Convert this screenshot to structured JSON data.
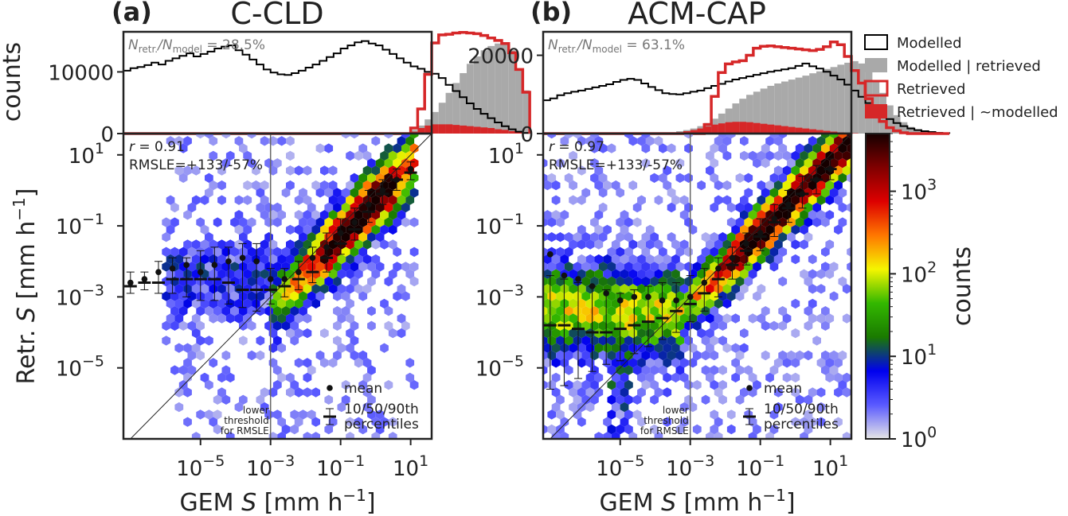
{
  "figure": {
    "colorbar": {
      "label": "counts",
      "ticks": [
        {
          "exp": "0",
          "value": 1
        },
        {
          "exp": "1",
          "value": 10
        },
        {
          "exp": "2",
          "value": 100
        },
        {
          "exp": "3",
          "value": 1000
        }
      ],
      "colormap": [
        "#e6e6e6",
        "#5a5aff",
        "#0000ee",
        "#1a7a00",
        "#33b800",
        "#f5f500",
        "#ff7700",
        "#dd0000",
        "#800000",
        "#150000"
      ],
      "range": [
        1,
        5000
      ]
    },
    "legend": {
      "items": [
        {
          "label": "Modelled",
          "style": "outline",
          "color": "#000000"
        },
        {
          "label": "Modelled | retrieved",
          "style": "fill",
          "color": "#a9a9a9"
        },
        {
          "label": "Retrieved",
          "style": "outline",
          "color": "#d62728"
        },
        {
          "label": "Retrieved | ~modelled",
          "style": "fill",
          "color": "#d62728"
        }
      ]
    },
    "colors": {
      "modelled": "#000000",
      "modelled_retrieved": "#a9a9a9",
      "retrieved": "#d62728",
      "axis": "#222222"
    }
  },
  "chart_data": [
    {
      "panel_label": "(a)",
      "title": "C-CLD",
      "histogram": {
        "type": "bar",
        "ylabel": "counts",
        "yticks": [
          "0",
          "10000"
        ],
        "ylim": [
          0,
          16500
        ],
        "ratio_text_prefix": "N",
        "ratio_sub_num": "retr.",
        "ratio_sep": "/N",
        "ratio_sub_den": "model",
        "ratio_value": " = 28.5%",
        "log10_x_edges_start": -7.2,
        "bin_width_log10": 0.2,
        "series": [
          {
            "name": "Modelled",
            "values": [
              10200,
              10600,
              10800,
              11100,
              11500,
              11200,
              11800,
              12200,
              12600,
              13000,
              12500,
              12900,
              13300,
              13800,
              14100,
              14300,
              13500,
              12800,
              12000,
              11200,
              10400,
              9900,
              9600,
              9500,
              9800,
              10200,
              10700,
              11200,
              11800,
              12400,
              13000,
              13800,
              14300,
              14800,
              15000,
              14600,
              14300,
              13600,
              12900,
              12200,
              11500,
              10900,
              10500,
              10000,
              9700,
              9000,
              7900,
              6900,
              5900,
              4900,
              4000,
              3200,
              2500,
              1800,
              1200,
              700,
              300,
              100
            ]
          },
          {
            "name": "Modelled | retrieved",
            "values": [
              0,
              0,
              0,
              0,
              0,
              0,
              0,
              0,
              0,
              0,
              0,
              0,
              0,
              0,
              0,
              0,
              0,
              0,
              0,
              0,
              0,
              0,
              0,
              0,
              0,
              0,
              0,
              0,
              0,
              0,
              0,
              0,
              0,
              0,
              0,
              0,
              0,
              0,
              0,
              0,
              0,
              600,
              1300,
              2300,
              3500,
              5000,
              6600,
              8200,
              9800,
              11300,
              12500,
              13500,
              14200,
              14600,
              14800,
              13500,
              10500,
              7000
            ]
          },
          {
            "name": "Retrieved",
            "values": [
              0,
              0,
              0,
              0,
              0,
              0,
              0,
              0,
              0,
              0,
              0,
              0,
              0,
              0,
              0,
              0,
              0,
              0,
              0,
              0,
              0,
              0,
              0,
              0,
              0,
              0,
              0,
              0,
              0,
              0,
              0,
              0,
              0,
              0,
              0,
              0,
              0,
              0,
              0,
              0,
              0,
              900,
              4000,
              9600,
              14700,
              16000,
              16100,
              16300,
              16400,
              16300,
              16200,
              15900,
              15500,
              15100,
              14600,
              13100,
              10400,
              6700
            ]
          },
          {
            "name": "Retrieved | ~modelled",
            "values": [
              0,
              0,
              0,
              0,
              0,
              0,
              0,
              0,
              0,
              0,
              0,
              0,
              0,
              0,
              0,
              0,
              0,
              0,
              0,
              0,
              0,
              0,
              0,
              0,
              0,
              0,
              0,
              0,
              0,
              0,
              0,
              0,
              0,
              0,
              0,
              0,
              0,
              0,
              0,
              0,
              0,
              300,
              900,
              1300,
              1500,
              1500,
              1500,
              1400,
              1300,
              1200,
              1100,
              1000,
              900,
              700,
              600,
              400,
              300,
              200
            ]
          }
        ]
      },
      "scatter": {
        "type": "heatmap",
        "xlabel_pre": "GEM ",
        "xlabel_var": "S",
        "xlabel_unit": " [mm h",
        "xlabel_exp": "−1",
        "xlabel_end": "]",
        "ylabel_pre": "Retr. ",
        "ylabel_var": "S",
        "ylabel_unit": " [mm h",
        "ylabel_exp": "−1",
        "ylabel_end": "]",
        "xlim_log10": [
          -7.2,
          1.6
        ],
        "ylim_log10": [
          -7.0,
          1.6
        ],
        "xticks": [
          {
            "exp": "−5",
            "log10": -5
          },
          {
            "exp": "−3",
            "log10": -3
          },
          {
            "exp": "−1",
            "log10": -1
          },
          {
            "exp": "1",
            "log10": 1
          }
        ],
        "yticks": [
          {
            "exp": "1",
            "log10": 1
          },
          {
            "exp": "−1",
            "log10": -1
          },
          {
            "exp": "−3",
            "log10": -3
          },
          {
            "exp": "−5",
            "log10": -5
          }
        ],
        "r_text": "r = 0.91",
        "rmsle_text": "RMSLE=+133/-57%",
        "threshold_log10": -3,
        "threshold_label": [
          "lower",
          "threshold",
          "for RMSLE"
        ],
        "legend_mean": "mean",
        "legend_pct": [
          "10/50/90th",
          "percentiles"
        ],
        "binned": {
          "x_log10": [
            -7.0,
            -6.6,
            -6.2,
            -5.8,
            -5.4,
            -5.0,
            -4.6,
            -4.2,
            -3.8,
            -3.4,
            -3.0,
            -2.6,
            -2.2,
            -1.8,
            -1.4,
            -1.0,
            -0.6,
            -0.2,
            0.2,
            0.6,
            1.0
          ],
          "mean_log10": [
            -2.6,
            -2.5,
            -2.3,
            -2.2,
            -2.1,
            -2.3,
            -2.1,
            -2.0,
            -1.9,
            -2.0,
            -2.5,
            -2.5,
            -2.3,
            -1.9,
            -1.6,
            -1.2,
            -0.9,
            -0.4,
            0.0,
            0.3,
            0.6
          ],
          "median_log10": [
            -2.7,
            -2.6,
            -2.6,
            -2.5,
            -2.5,
            -2.5,
            -2.5,
            -2.6,
            -2.8,
            -2.8,
            -2.8,
            -2.7,
            -2.5,
            -2.3,
            -1.9,
            -1.5,
            -1.1,
            -0.6,
            -0.1,
            0.3,
            0.5
          ],
          "p10_log10": [
            -2.9,
            -2.8,
            -2.9,
            -2.9,
            -3.0,
            -3.1,
            -3.1,
            -3.2,
            -3.3,
            -3.4,
            -3.2,
            -3.0,
            -2.8,
            -2.6,
            -2.3,
            -1.8,
            -1.4,
            -0.9,
            -0.4,
            0.0,
            0.3
          ],
          "p90_log10": [
            -2.3,
            -2.3,
            -2.0,
            -1.9,
            -1.9,
            -1.7,
            -1.6,
            -1.6,
            -1.5,
            -1.5,
            -2.2,
            -2.2,
            -2.0,
            -1.6,
            -1.2,
            -0.8,
            -0.5,
            0.0,
            0.3,
            0.6,
            0.8
          ]
        }
      }
    },
    {
      "panel_label": "(b)",
      "title": "ACM-CAP",
      "histogram": {
        "type": "bar",
        "ylabel": "",
        "yticks": [
          "0",
          "20000"
        ],
        "ylim": [
          0,
          26000
        ],
        "ratio_text_prefix": "N",
        "ratio_sub_num": "retr.",
        "ratio_sep": "/N",
        "ratio_sub_den": "model",
        "ratio_value": " = 63.1%",
        "log10_x_edges_start": -7.2,
        "bin_width_log10": 0.2,
        "series": [
          {
            "name": "Modelled",
            "values": [
              8500,
              9000,
              9800,
              10300,
              10700,
              11000,
              11400,
              11800,
              12200,
              12600,
              13200,
              13700,
              14000,
              13700,
              12800,
              11900,
              11100,
              10300,
              10100,
              10000,
              10300,
              10700,
              11000,
              11600,
              12200,
              12700,
              13300,
              13800,
              14200,
              14600,
              15000,
              15400,
              15800,
              16100,
              16400,
              16700,
              17300,
              17900,
              17200,
              16600,
              15800,
              14800,
              13800,
              12500,
              11000,
              9400,
              7800,
              6300,
              4900,
              3700,
              2700,
              1900,
              1300,
              900,
              600,
              400,
              200,
              100
            ]
          },
          {
            "name": "Modelled | retrieved",
            "values": [
              0,
              0,
              0,
              0,
              0,
              0,
              0,
              0,
              0,
              0,
              0,
              0,
              0,
              0,
              0,
              0,
              0,
              0,
              0,
              600,
              900,
              1300,
              1900,
              2700,
              3800,
              5100,
              6400,
              7700,
              8900,
              9900,
              10700,
              11500,
              12200,
              12800,
              13300,
              13800,
              14300,
              14800,
              15400,
              15900,
              16500,
              17000,
              17600,
              18100,
              18500,
              17900,
              16200,
              13600,
              10400,
              7200,
              4700,
              2900,
              1700,
              1000,
              500,
              300,
              100,
              0
            ]
          },
          {
            "name": "Retrieved",
            "values": [
              0,
              0,
              0,
              0,
              0,
              0,
              0,
              0,
              0,
              0,
              0,
              0,
              0,
              0,
              0,
              0,
              0,
              0,
              0,
              0,
              0,
              0,
              0,
              2300,
              9500,
              15600,
              17800,
              18300,
              18600,
              20000,
              21800,
              22300,
              22400,
              22200,
              22000,
              21800,
              21600,
              21400,
              21200,
              21500,
              22200,
              23400,
              22700,
              19700,
              16100,
              12900,
              8900,
              5600,
              3100,
              1500,
              700,
              200,
              0,
              0,
              0,
              0,
              0,
              0
            ]
          },
          {
            "name": "Retrieved | ~modelled",
            "values": [
              0,
              0,
              0,
              0,
              0,
              0,
              0,
              0,
              0,
              0,
              0,
              0,
              0,
              0,
              0,
              0,
              0,
              0,
              0,
              300,
              600,
              900,
              1300,
              1800,
              2300,
              2600,
              2900,
              3000,
              3000,
              2900,
              2700,
              2500,
              2300,
              2100,
              1900,
              1700,
              1500,
              1300,
              1100,
              900,
              700,
              500,
              300,
              200,
              100,
              0,
              0,
              0,
              0,
              0,
              0,
              0,
              0,
              0,
              0,
              0,
              0,
              0
            ]
          }
        ]
      },
      "scatter": {
        "type": "heatmap",
        "xlabel_pre": "GEM ",
        "xlabel_var": "S",
        "xlabel_unit": " [mm h",
        "xlabel_exp": "−1",
        "xlabel_end": "]",
        "ylabel_pre": "",
        "ylabel_var": "",
        "ylabel_unit": "",
        "ylabel_exp": "",
        "ylabel_end": "",
        "xlim_log10": [
          -7.2,
          1.6
        ],
        "ylim_log10": [
          -7.0,
          1.6
        ],
        "xticks": [
          {
            "exp": "−5",
            "log10": -5
          },
          {
            "exp": "−3",
            "log10": -3
          },
          {
            "exp": "−1",
            "log10": -1
          },
          {
            "exp": "1",
            "log10": 1
          }
        ],
        "yticks": [
          {
            "exp": "1",
            "log10": 1
          },
          {
            "exp": "−1",
            "log10": -1
          },
          {
            "exp": "−3",
            "log10": -3
          },
          {
            "exp": "−5",
            "log10": -5
          }
        ],
        "r_text": "r = 0.97",
        "rmsle_text": "RMSLE=+133/-57%",
        "threshold_log10": -3,
        "threshold_label": [
          "lower",
          "threshold",
          "for RMSLE"
        ],
        "legend_mean": "mean",
        "legend_pct": [
          "10/50/90th",
          "percentiles"
        ],
        "binned": {
          "x_log10": [
            -7.0,
            -6.6,
            -6.2,
            -5.8,
            -5.4,
            -5.0,
            -4.6,
            -4.2,
            -3.8,
            -3.4,
            -3.0,
            -2.6,
            -2.2,
            -1.8,
            -1.4,
            -1.0,
            -0.6,
            -0.2,
            0.2,
            0.6,
            1.0
          ],
          "mean_log10": [
            -1.8,
            -2.4,
            -2.5,
            -2.7,
            -2.9,
            -3.1,
            -3.0,
            -3.0,
            -3.1,
            -3.1,
            -3.0,
            -2.6,
            -2.2,
            -1.9,
            -1.5,
            -1.2,
            -0.8,
            -0.4,
            -0.1,
            0.3,
            0.6
          ],
          "median_log10": [
            -3.8,
            -3.8,
            -3.9,
            -4.0,
            -4.0,
            -3.9,
            -3.8,
            -3.7,
            -3.6,
            -3.4,
            -3.2,
            -2.9,
            -2.5,
            -2.1,
            -1.7,
            -1.3,
            -0.9,
            -0.5,
            -0.1,
            0.3,
            0.6
          ],
          "p10_log10": [
            -5.6,
            -5.5,
            -5.3,
            -5.1,
            -4.9,
            -4.8,
            -4.6,
            -4.4,
            -4.2,
            -4.0,
            -3.7,
            -3.4,
            -3.0,
            -2.5,
            -2.1,
            -1.7,
            -1.3,
            -0.9,
            -0.5,
            -0.1,
            0.3
          ],
          "p90_log10": [
            -2.4,
            -2.5,
            -2.6,
            -2.7,
            -2.8,
            -2.9,
            -2.8,
            -2.7,
            -2.6,
            -2.6,
            -2.4,
            -2.2,
            -1.9,
            -1.6,
            -1.2,
            -0.8,
            -0.4,
            0.0,
            0.4,
            0.7,
            0.9
          ]
        }
      }
    }
  ]
}
